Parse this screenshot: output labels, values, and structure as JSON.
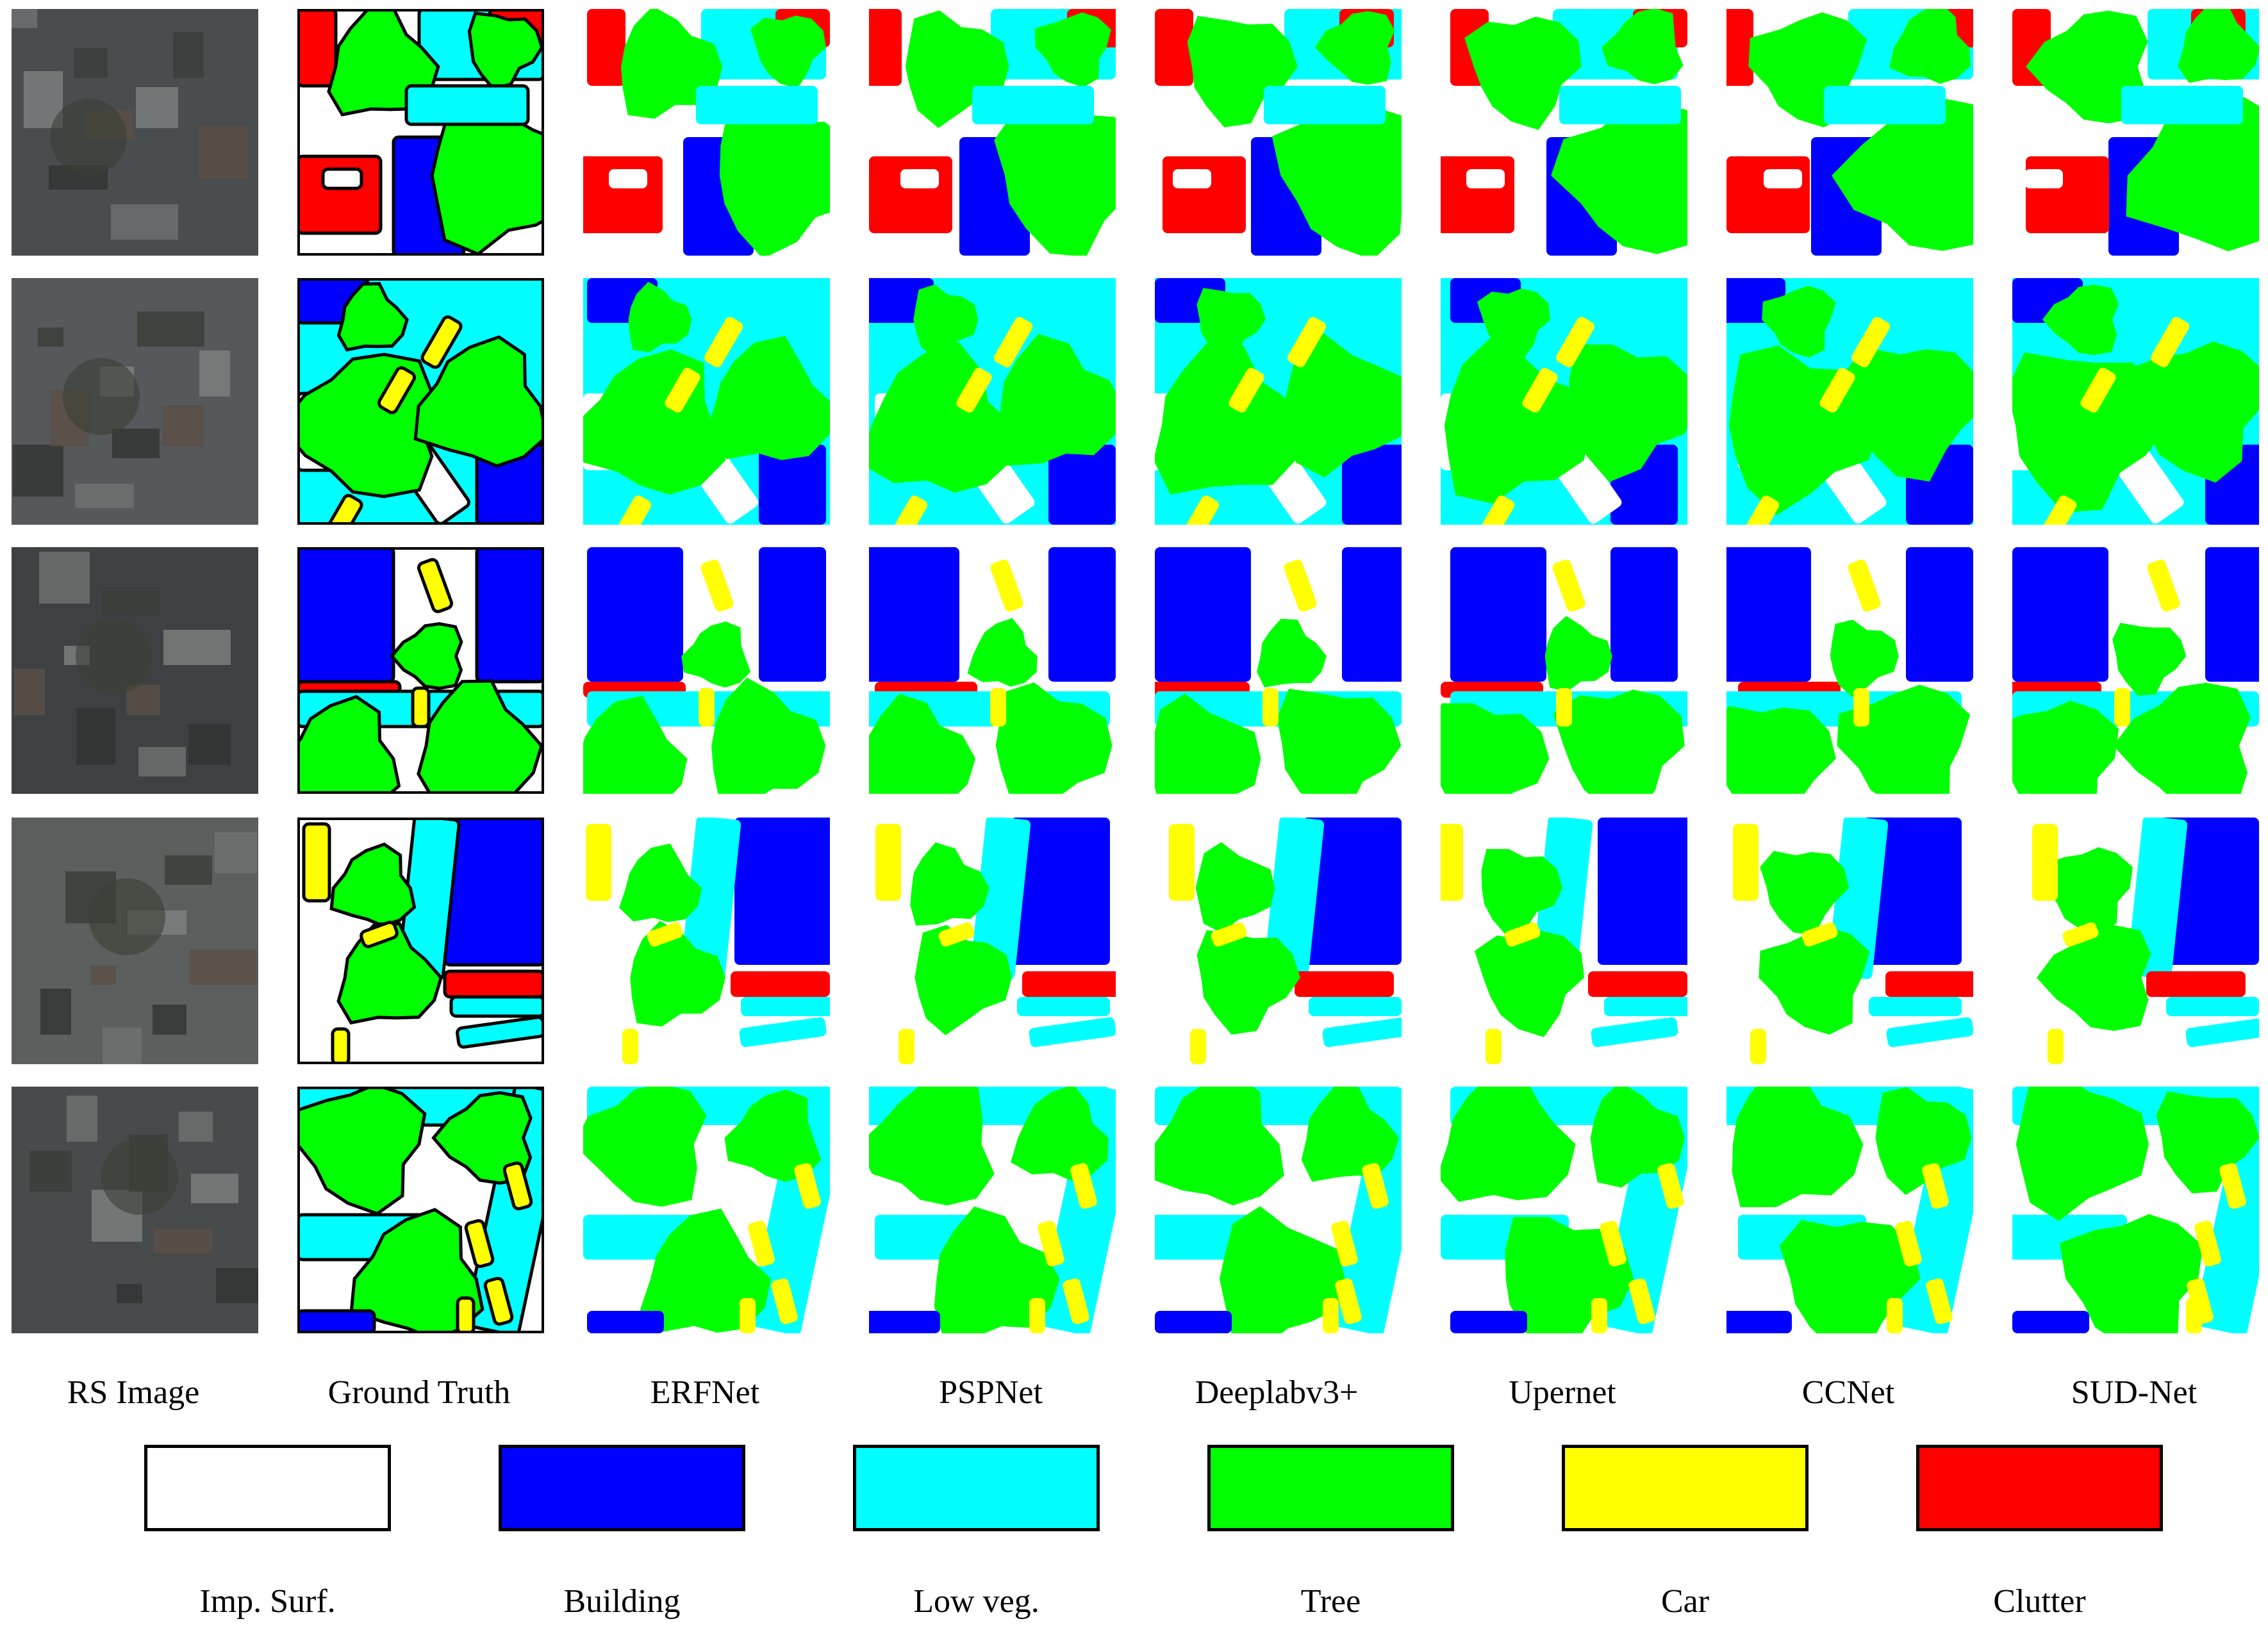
{
  "figure": {
    "rows": 5,
    "columns": [
      {
        "id": "rs",
        "label": "RS Image"
      },
      {
        "id": "gt",
        "label": "Ground Truth"
      },
      {
        "id": "erfnet",
        "label": "ERFNet"
      },
      {
        "id": "pspnet",
        "label": "PSPNet"
      },
      {
        "id": "deeplab",
        "label": "Deeplabv3+"
      },
      {
        "id": "upernet",
        "label": "Upernet"
      },
      {
        "id": "ccnet",
        "label": "CCNet"
      },
      {
        "id": "sudnet",
        "label": "SUD-Net"
      }
    ]
  },
  "legend": [
    {
      "label": "Imp. Surf.",
      "color": "#FFFFFF"
    },
    {
      "label": "Building",
      "color": "#0000FF"
    },
    {
      "label": "Low veg.",
      "color": "#00FFFF"
    },
    {
      "label": "Tree",
      "color": "#00FF00"
    },
    {
      "label": "Car",
      "color": "#FFFF00"
    },
    {
      "label": "Clutter",
      "color": "#FF0000"
    }
  ]
}
